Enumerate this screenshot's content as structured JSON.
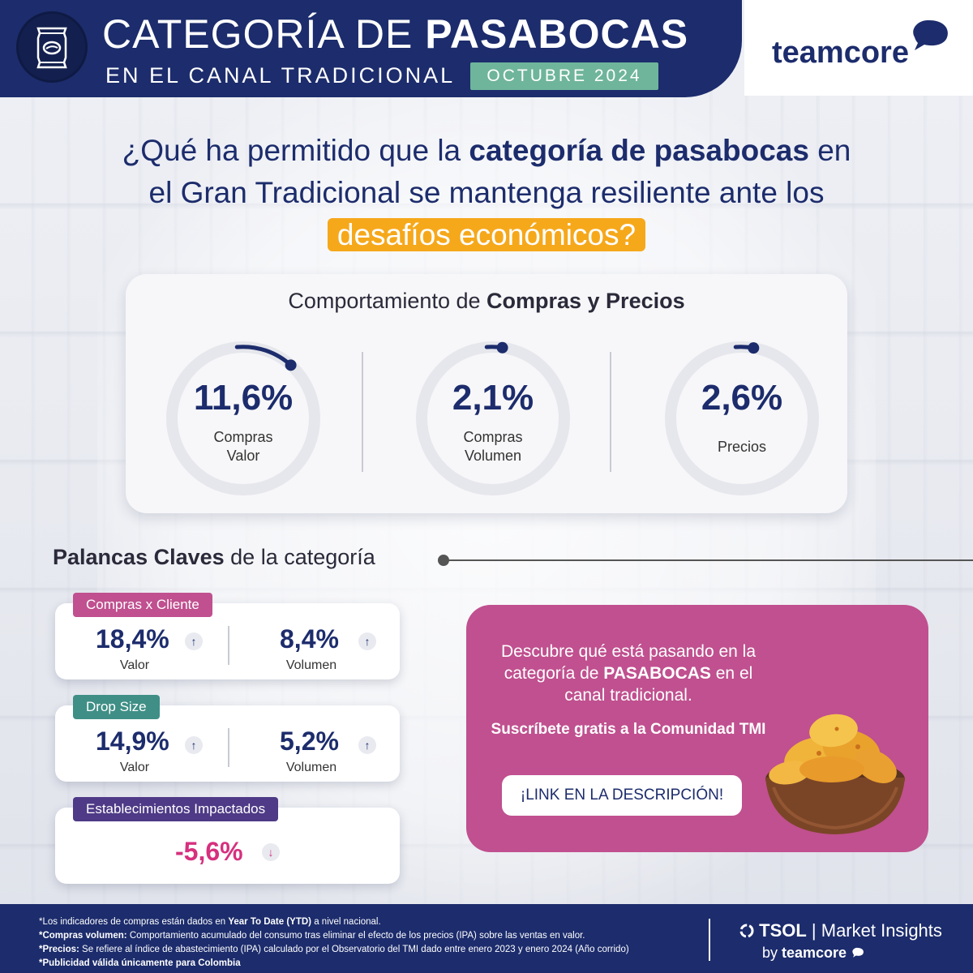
{
  "header": {
    "title_light": "CATEGORÍA DE ",
    "title_bold": "PASABOCAS",
    "subtitle": "EN EL CANAL TRADICIONAL",
    "month": "OCTUBRE 2024",
    "icon": "snack-bag-icon"
  },
  "brand": {
    "name": "teamcore",
    "icon": "speech-bubble-icon"
  },
  "question": {
    "part1": "¿Qué ha permitido que la ",
    "bold1": "categoría de pasabocas",
    "part2": " en el Gran Tradicional se mantenga resiliente ante los ",
    "highlight": "desafíos económicos?"
  },
  "compras_precios": {
    "title_light": "Comportamiento de ",
    "title_bold": "Compras y Precios",
    "gauges": [
      {
        "value": "11,6%",
        "label1": "Compras",
        "label2": "Valor",
        "fill": 0.116
      },
      {
        "value": "2,1%",
        "label1": "Compras",
        "label2": "Volumen",
        "fill": 0.021
      },
      {
        "value": "2,6%",
        "label1": "Precios",
        "label2": "",
        "fill": 0.026
      }
    ]
  },
  "palancas": {
    "title_bold": "Palancas Claves",
    "title_light": " de la categoría",
    "compras_cliente": {
      "tag": "Compras x Cliente",
      "tag_color": "#c0508f",
      "valor": "18,4%",
      "valor_label": "Valor",
      "volumen": "8,4%",
      "volumen_label": "Volumen"
    },
    "drop_size": {
      "tag": "Drop Size",
      "tag_color": "#3f8f86",
      "valor": "14,9%",
      "valor_label": "Valor",
      "volumen": "5,2%",
      "volumen_label": "Volumen"
    },
    "establecimientos": {
      "tag": "Establecimientos Impactados",
      "tag_color": "#4e3a86",
      "value": "-5,6%"
    },
    "arrow_up": "↑",
    "arrow_down": "↓"
  },
  "promo": {
    "line1": "Descubre qué está pasando en la categoría de ",
    "bold": "PASABOCAS",
    "line2": " en el canal tradicional.",
    "cta": "Suscríbete gratis a la Comunidad TMI",
    "button": "¡LINK EN LA DESCRIPCIÓN!"
  },
  "footer": {
    "note1_pre": "*Los indicadores de compras están dados en ",
    "note1_bold": "Year To Date (YTD)",
    "note1_post": " a nivel nacional.",
    "note2_bold": "*Compras volumen:",
    "note2_text": " Comportamiento acumulado del consumo tras eliminar el efecto de los precios (IPA) sobre las ventas en valor.",
    "note3_bold": "*Precios:",
    "note3_text": " Se refiere al índice de abastecimiento (IPA) calculado por el Observatorio del TMI dado entre enero 2023 y enero 2024 (Año corrido)",
    "note4": "*Publicidad válida únicamente para Colombia",
    "tsol_bold": "TSOL",
    "tsol_rest": " | Market Insights",
    "by": "by ",
    "by_brand": "teamcore"
  }
}
